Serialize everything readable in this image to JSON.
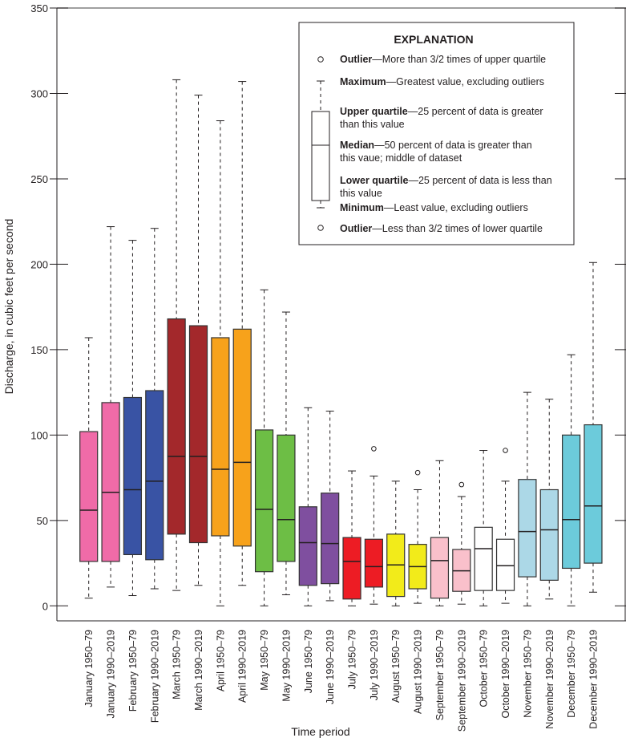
{
  "chart_data": {
    "type": "boxplot",
    "xlabel": "Time period",
    "ylabel": "Discharge, in cubic feet per second",
    "ylim": [
      0,
      350
    ],
    "yticks": [
      0,
      50,
      100,
      150,
      200,
      250,
      300,
      350
    ],
    "grid": false,
    "categories": [
      "January 1950–79",
      "January 1990–2019",
      "February 1950–79",
      "February 1990–2019",
      "March 1950–79",
      "March 1990–2019",
      "April 1950–79",
      "April 1990–2019",
      "May 1950–79",
      "May 1990–2019",
      "June 1950–79",
      "June 1990–2019",
      "July 1950–79",
      "July 1990–2019",
      "August 1950–79",
      "August 1990–2019",
      "September 1950–79",
      "September 1990–2019",
      "October 1950–79",
      "October 1990–2019",
      "November 1950–79",
      "November 1990–2019",
      "December 1950–79",
      "December 1990–2019"
    ],
    "boxes": [
      {
        "min": 4.5,
        "q1": 26,
        "median": 56,
        "q3": 102,
        "max": 157,
        "outliers": [],
        "color": "#f06ba8"
      },
      {
        "min": 11,
        "q1": 26,
        "median": 66.5,
        "q3": 119,
        "max": 222,
        "outliers": [],
        "color": "#f06ba8"
      },
      {
        "min": 6,
        "q1": 30,
        "median": 68,
        "q3": 122,
        "max": 214,
        "outliers": [],
        "color": "#3953a4"
      },
      {
        "min": 10,
        "q1": 27,
        "median": 73,
        "q3": 126,
        "max": 221,
        "outliers": [],
        "color": "#3953a4"
      },
      {
        "min": 9,
        "q1": 42,
        "median": 87.5,
        "q3": 168,
        "max": 308,
        "outliers": [],
        "color": "#a3282b"
      },
      {
        "min": 12,
        "q1": 37,
        "median": 87.5,
        "q3": 164,
        "max": 299,
        "outliers": [],
        "color": "#a3282b"
      },
      {
        "min": 0,
        "q1": 41,
        "median": 80,
        "q3": 157,
        "max": 284,
        "outliers": [],
        "color": "#f7a21b"
      },
      {
        "min": 12,
        "q1": 35,
        "median": 84,
        "q3": 162,
        "max": 307,
        "outliers": [],
        "color": "#f7a21b"
      },
      {
        "min": 0,
        "q1": 20,
        "median": 56.5,
        "q3": 103,
        "max": 185,
        "outliers": [],
        "color": "#6dbe45"
      },
      {
        "min": 6.5,
        "q1": 26,
        "median": 50.5,
        "q3": 100,
        "max": 172,
        "outliers": [],
        "color": "#6dbe45"
      },
      {
        "min": 0,
        "q1": 12,
        "median": 37,
        "q3": 58,
        "max": 116,
        "outliers": [],
        "color": "#7f4f9f"
      },
      {
        "min": 3,
        "q1": 13,
        "median": 36.5,
        "q3": 66,
        "max": 114,
        "outliers": [],
        "color": "#7f4f9f"
      },
      {
        "min": 0,
        "q1": 4,
        "median": 26,
        "q3": 40,
        "max": 79,
        "outliers": [],
        "color": "#ed1c24"
      },
      {
        "min": 1,
        "q1": 11,
        "median": 23,
        "q3": 39,
        "max": 76,
        "outliers": [
          92
        ],
        "color": "#ed1c24"
      },
      {
        "min": 0,
        "q1": 5.5,
        "median": 24,
        "q3": 42,
        "max": 73,
        "outliers": [],
        "color": "#f2eb1a"
      },
      {
        "min": 1.5,
        "q1": 10,
        "median": 23,
        "q3": 36,
        "max": 68,
        "outliers": [
          78
        ],
        "color": "#f2eb1a"
      },
      {
        "min": 0,
        "q1": 4.5,
        "median": 26.5,
        "q3": 40,
        "max": 85,
        "outliers": [],
        "color": "#f9c0cb"
      },
      {
        "min": 1,
        "q1": 8.5,
        "median": 20.5,
        "q3": 33,
        "max": 64,
        "outliers": [
          71
        ],
        "color": "#f9c0cb"
      },
      {
        "min": 0,
        "q1": 9,
        "median": 33.5,
        "q3": 46,
        "max": 91,
        "outliers": [],
        "color": "#ffffff"
      },
      {
        "min": 1.5,
        "q1": 9,
        "median": 23.5,
        "q3": 39,
        "max": 73,
        "outliers": [
          91
        ],
        "color": "#ffffff"
      },
      {
        "min": 0,
        "q1": 17,
        "median": 43.5,
        "q3": 74,
        "max": 125,
        "outliers": [],
        "color": "#acd8e7"
      },
      {
        "min": 4,
        "q1": 15,
        "median": 44.5,
        "q3": 68,
        "max": 121,
        "outliers": [],
        "color": "#acd8e7"
      },
      {
        "min": 0,
        "q1": 22,
        "median": 50.5,
        "q3": 100,
        "max": 147,
        "outliers": [],
        "color": "#6ccbdb"
      },
      {
        "min": 8,
        "q1": 25,
        "median": 58.5,
        "q3": 106,
        "max": 201,
        "outliers": [],
        "color": "#6ccbdb"
      }
    ]
  },
  "legend": {
    "title": "EXPLANATION",
    "items": [
      {
        "term": "Outlier",
        "desc": "—More than 3/2 times of upper quartile"
      },
      {
        "term": "Maximum",
        "desc": "—Greatest value, excluding outliers"
      },
      {
        "term": "Upper quartile",
        "desc": "—25 percent of data is greater",
        "desc2": "than this value"
      },
      {
        "term": "Median",
        "desc": "—50 percent of data is greater than",
        "desc2": "this vaue; middle of dataset"
      },
      {
        "term": "Lower quartile",
        "desc": "—25 percent of data is less than",
        "desc2": "this value"
      },
      {
        "term": "Minimum",
        "desc": "—Least value, excluding outliers"
      },
      {
        "term": "Outlier",
        "desc": "—Less than 3/2 times of lower quartile"
      }
    ]
  }
}
